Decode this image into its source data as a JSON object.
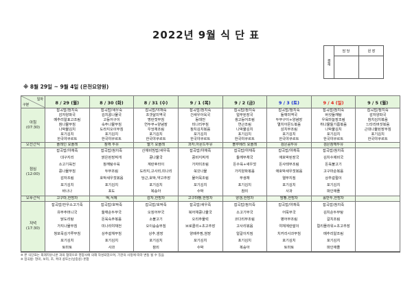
{
  "title": "2022년 9월 식 단 표",
  "approval": {
    "label": "결재",
    "columns": [
      "담 당",
      "원 장"
    ]
  },
  "subtitle": "※ 8월 29일 ~ 9월 4일 (은천요양원)",
  "table": {
    "corner_top": "일자",
    "corner_bottom": "구분",
    "days": [
      {
        "label": "8 / 29 (월)",
        "kind": "weekday"
      },
      {
        "label": "8 / 30 (화)",
        "kind": "weekday"
      },
      {
        "label": "8 / 31 (수)",
        "kind": "weekday"
      },
      {
        "label": "9 / 1 (목)",
        "kind": "weekday"
      },
      {
        "label": "9 / 2 (금)",
        "kind": "weekday"
      },
      {
        "label": "9 / 3 (토)",
        "kind": "saturday"
      },
      {
        "label": "9 / 4 (일)",
        "kind": "sunday"
      },
      {
        "label": "9 / 5 (월)",
        "kind": "weekday"
      }
    ],
    "rows": [
      {
        "key": "breakfast",
        "label": "아침",
        "time": "(07:30)",
        "cls": "b",
        "cells": [
          [
            "잡곡밥/참치죽",
            "감자양파국",
            "메추리알표고조림",
            "참나물무침",
            "나박물김치",
            "포기김치",
            "한국야쿠르트"
          ],
          [
            "잡곡밥/새우죽",
            "김치콩나물국",
            "고등어구이",
            "숙주나물무침",
            "도라지오이무침",
            "포기김치",
            "한국야쿠르트"
          ],
          [
            "잡곡밥/야채죽",
            "조갯살미역국",
            "명란젓무침",
            "연두부+양념장",
            "우엉채조림",
            "포기김치",
            "한국야쿠르트"
          ],
          [
            "잡곡밥/참치죽",
            "건새우아욱국",
            "동태전",
            "미나리무침",
            "참치김치볶음",
            "포기김치",
            "한국야쿠르트"
          ],
          [
            "잡곡밥/참치죽",
            "얼무된장국",
            "생고등어조림",
            "연근조림",
            "나박물김치",
            "포기김치",
            "한국야쿠르트"
          ],
          [
            "잡곡밥/참치죽",
            "들깨미역국",
            "두부구이+양념장",
            "멸치아몬드볶음",
            "삼치무조림",
            "포기김치",
            "한국야쿠르트"
          ],
          [
            "잡곡밥/참치죽",
            "버섯들깨탕",
            "우육마늘장조림",
            "취나물들기름볶음",
            "나박물김치",
            "포기김치",
            "한국야쿠르트"
          ],
          [
            "잡곡밥/참치죽",
            "감자양파국",
            "참치김치볶음",
            "느타리버섯볶음",
            "근대나물된장무침",
            "포기김치",
            "한국야쿠르트"
          ]
        ]
      },
      {
        "key": "morning-snack",
        "label": "오전간식",
        "time": "",
        "cls": "snack",
        "cells": [
          [
            "플레인 요플레"
          ],
          [
            "참깨 두유"
          ],
          [
            "딸기 요플레"
          ],
          [
            "과자,아몬드두유"
          ],
          [
            "블루베리 요플레"
          ],
          [
            "검은콩두유"
          ],
          [
            "검은참깨두유"
          ],
          [
            ""
          ]
        ]
      },
      {
        "key": "lunch",
        "label": "점심",
        "time": "(12:00)",
        "cls": "l",
        "cells": [
          [
            "잡곡밥/야채죽",
            "대구지리",
            "소고기육전",
            "콩나물무침",
            "감자조림",
            "포기김치",
            "바나나"
          ],
          [
            "잡곡밥/참치죽",
            "맑은된장찌개",
            "참깨탕수육",
            "두부조림",
            "호박새우젓볶음",
            "포기김치",
            "포도"
          ],
          [
            "산채비빔밥/새우죽",
            "콩나물국",
            "계란후라이",
            "도라지,고사리,미나리",
            "당근,호박,약고추장",
            "포기김치",
            "복숭아"
          ],
          [
            "잡곡밥/야채죽",
            "콩비지찌개",
            "가자미조림",
            "쑥갓나물",
            "물어묵조림",
            "포기김치",
            "수박"
          ],
          [
            "잡곡밥/야채죽",
            "들깨무채국",
            "돈수육+새우젓",
            "가지양파볶음",
            "무생채",
            "포기김치",
            "참외"
          ],
          [
            "잡곡밥/야채죽",
            "애호박된장국",
            "돈사태무조림",
            "애호박새우젓볶음",
            "열무지짐",
            "포기김치",
            "사과"
          ],
          [
            "잡곡밥/참치죽",
            "김치수제비국",
            "돈육불고기",
            "고구마순볶음",
            "상추겉절이",
            "포기김치",
            "파인애플"
          ],
          [
            ""
          ]
        ]
      },
      {
        "key": "afternoon-snack",
        "label": "오후간식",
        "time": "",
        "cls": "snack",
        "cells": [
          [
            "고구마,한방차"
          ],
          [
            "떡,식혜"
          ],
          [
            "감자,한방차"
          ],
          [
            "고구마빵,한방차"
          ],
          [
            "양갱,한방차"
          ],
          [
            "밤빵,한방차"
          ],
          [
            "롤만두,한방차"
          ],
          [
            ""
          ]
        ]
      },
      {
        "key": "dinner",
        "label": "저녁",
        "time": "(17:30)",
        "cls": "d",
        "cells": [
          [
            "잡곡밥/한우소고기죽",
            "유부주머니국",
            "닭도리탕",
            "가지나물무침",
            "청포묵김가루무침",
            "포기김치",
            "토마토"
          ],
          [
            "잡곡밥/호박죽",
            "들깨순두부국",
            "돈육숙주볶음",
            "미나리야채전",
            "상추겉채무침",
            "포기김치",
            "사과"
          ],
          [
            "잡곡밥/호박죽",
            "오징어무국",
            "소불고기",
            "오이숭숭무침",
            "상추,쌈장",
            "포기김치",
            "참외"
          ],
          [
            "잡곡밥/새우죽",
            "북어채콩나물국",
            "오리주물럭",
            "브로콜리+초고추장",
            "양배추찜,쌈장",
            "포기김치",
            "수박"
          ],
          [
            "잡곡밥/참치죽",
            "소고기무국",
            "코다리무조림",
            "고사리볶음",
            "얼갈이지짐",
            "포기김치",
            "복숭아"
          ],
          [
            "잡곡밥/야채죽",
            "어묵무국",
            "병어무조림",
            "야채계란말이",
            "치커리사과무침",
            "포기김치",
            "토마토"
          ],
          [
            "잡곡밥/참치죽",
            "김치순두부탕",
            "갈치조림",
            "컬리플라워+초고추장",
            "메추리알조림",
            "포기김치",
            "파인애플"
          ],
          [
            ""
          ]
        ]
      }
    ]
  },
  "notes": [
    "※ 본 식단표는 외래지유니온 과의 협약으로 영양사에 의해 작성되었으며, 기관의 사정에 따라 변동 될 수 있음",
    "※ 잡곡밥: 현미, 보리, 조, 흑미 콩또는(납중콩) 혼합"
  ],
  "colors": {
    "header_bg": "#e4f5dc",
    "saturday": "#1b2fd0",
    "sunday": "#e0261b"
  }
}
